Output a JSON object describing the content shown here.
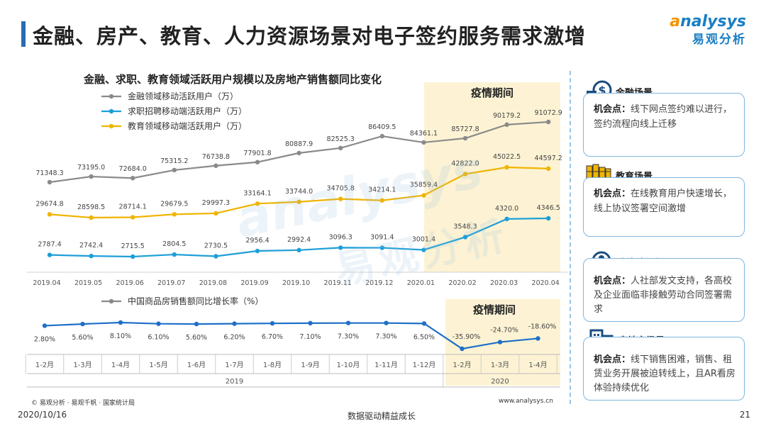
{
  "page": {
    "title": "金融、房产、教育、人力资源场景对电子签约服务需求激增",
    "logo_en": "nalysys",
    "logo_en_first": "a",
    "logo_cn": "易观分析",
    "source": "© 易观分析 · 易观千帆 · 国家统计局",
    "website": "www.analysys.cn",
    "date": "2020/10/16",
    "slogan": "数据驱动精益成长",
    "page_number": "21",
    "watermark_en": "analysys",
    "watermark_cn": "易观分析"
  },
  "chart_data": [
    {
      "type": "line",
      "title": "金融、求职、教育领域活跃用户规模以及房地产销售额同比变化",
      "highlight_label": "疫情期间",
      "categories": [
        "2019.04",
        "2019.05",
        "2019.06",
        "2019.07",
        "2019.08",
        "2019.09",
        "2019.10",
        "2019.11",
        "2019.12",
        "2020.01",
        "2020.02",
        "2020.03",
        "2020.04"
      ],
      "series": [
        {
          "name": "金融领域移动活跃用户（万）",
          "color": "#8a8a8a",
          "values": [
            71348.3,
            73195.0,
            72684.0,
            75315.2,
            76738.8,
            77901.8,
            80887.9,
            82525.3,
            86409.5,
            84361.1,
            85727.8,
            90179.2,
            91072.9
          ],
          "labels": [
            "71348.3",
            "73195.0",
            "72684.0",
            "75315.2",
            "76738.8",
            "77901.8",
            "80887.9",
            "82525.3",
            "86409.5",
            "84361.1",
            "85727.8",
            "90179.2",
            "91072.9"
          ]
        },
        {
          "name": "求职招聘移动端活跃用户（万）",
          "color": "#1e9fd8",
          "values": [
            2787.4,
            2742.4,
            2715.5,
            2804.5,
            2730.5,
            2956.4,
            2992.4,
            3096.3,
            3091.4,
            3001.4,
            3548.3,
            4320.0,
            4346.5
          ],
          "labels": [
            "2787.4",
            "2742.4",
            "2715.5",
            "2804.5",
            "2730.5",
            "2956.4",
            "2992.4",
            "3096.3",
            "3091.4",
            "3001.4",
            "3548.3",
            "4320.0",
            "4346.5"
          ]
        },
        {
          "name": "教育领域移动端活跃用户（万）",
          "color": "#f0b400",
          "values": [
            29674.8,
            28598.5,
            28714.1,
            29679.5,
            29997.3,
            33164.1,
            33744.0,
            34705.8,
            34214.1,
            35859.4,
            42822.0,
            45022.5,
            44597.2
          ],
          "labels": [
            "29674.8",
            "28598.5",
            "28714.1",
            "29679.5",
            "29997.3",
            "33164.1",
            "33744.0",
            "34705.8",
            "34214.1",
            "35859.4",
            "42822.0",
            "45022.5",
            "44597.2"
          ]
        }
      ]
    },
    {
      "type": "line",
      "highlight_label": "疫情期间",
      "categories": [
        "1-2月",
        "1-3月",
        "1-4月",
        "1-5月",
        "1-6月",
        "1-7月",
        "1-8月",
        "1-9月",
        "1-10月",
        "1-11月",
        "1-12月",
        "1-2月",
        "1-3月",
        "1-4月"
      ],
      "year_groups": [
        {
          "label": "2019",
          "from": 0,
          "to": 10
        },
        {
          "label": "2020",
          "from": 11,
          "to": 13
        }
      ],
      "series": [
        {
          "name": "中国商品房销售额同比增长率（%）",
          "color": "#1e6fc8",
          "values": [
            2.8,
            5.6,
            8.1,
            6.1,
            5.6,
            6.2,
            6.7,
            7.1,
            7.3,
            7.3,
            6.5,
            -35.9,
            -24.7,
            -18.6
          ],
          "labels": [
            "2.80%",
            "5.60%",
            "8.10%",
            "6.10%",
            "5.60%",
            "6.20%",
            "6.70%",
            "7.10%",
            "7.30%",
            "7.30%",
            "6.50%",
            "-35.90%",
            "-24.70%",
            "-18.60%"
          ]
        }
      ]
    }
  ],
  "cards": [
    {
      "title": "金融场景",
      "icon": "money-icon",
      "label": "机会点：",
      "text": "线下网点签约难以进行，签约流程向线上迁移"
    },
    {
      "title": "教育场景",
      "icon": "books-icon",
      "label": "机会点：",
      "text": "在线教育用户快速增长，线上协议签署空间激增"
    },
    {
      "title": "人力资源场景",
      "icon": "people-search-icon",
      "label": "机会点：",
      "text": "人社部发文支持，各高校及企业面临非接触劳动合同签署需求"
    },
    {
      "title": "房地产场景",
      "icon": "building-icon",
      "label": "机会点：",
      "text": "线下销售困难，销售、租赁业务开展被迫转线上，且AR看房体验持续优化"
    }
  ]
}
